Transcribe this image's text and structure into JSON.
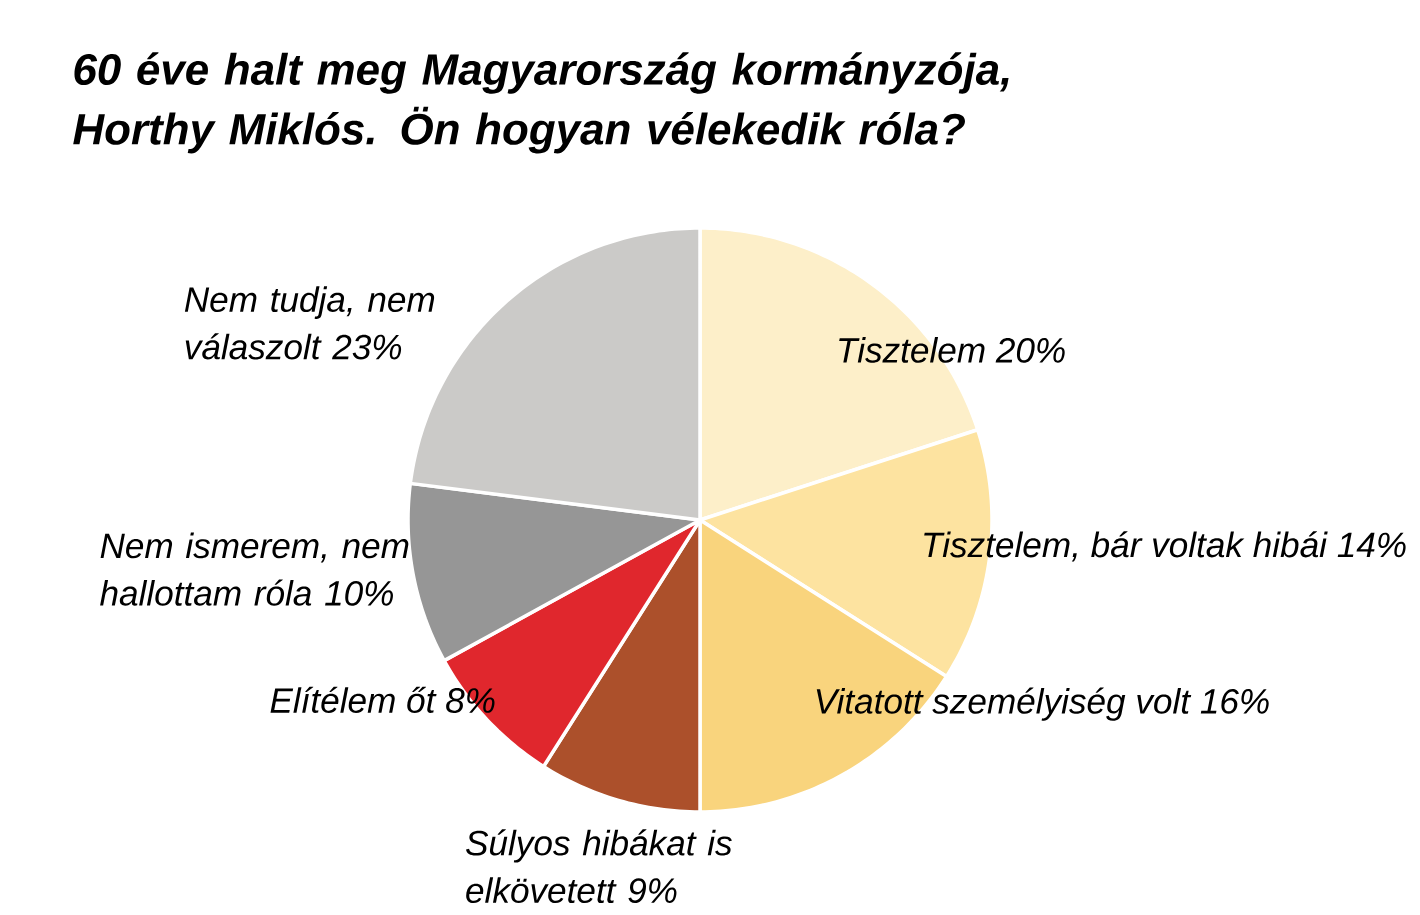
{
  "chart_data": {
    "type": "pie",
    "title": "60 éve halt meg Magyarország kormányzója, Horthy Miklós. Ön hogyan vélekedik róla?",
    "categories": [
      "Tisztelem",
      "Tisztelem, bár voltak hibái",
      "Vitatott személyiség volt",
      "Súlyos hibákat is elkövetett",
      "Elítélem őt",
      "Nem ismerem, nem hallottam róla",
      "Nem tudja, nem válaszolt"
    ],
    "values": [
      20,
      14,
      16,
      9,
      8,
      10,
      23
    ],
    "value_labels": [
      "20%",
      "14%",
      "16%",
      "9%",
      "8%",
      "10%",
      "23%"
    ],
    "colors": [
      "#fdefc9",
      "#fde3a0",
      "#f9d47d",
      "#ac502b",
      "#e0272d",
      "#969696",
      "#cbcac8"
    ]
  }
}
